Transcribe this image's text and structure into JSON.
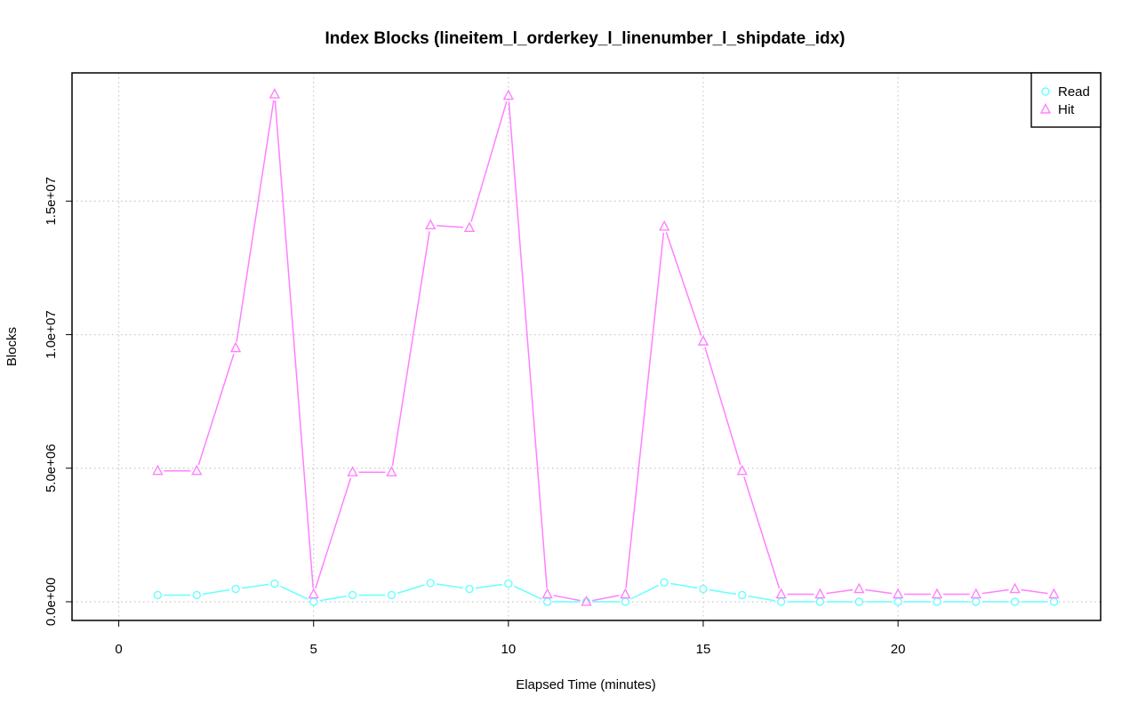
{
  "chart_data": {
    "type": "line",
    "title": "Index Blocks (lineitem_l_orderkey_l_linenumber_l_shipdate_idx)",
    "xlabel": "Elapsed Time (minutes)",
    "ylabel": "Blocks",
    "xlim": [
      -1.2,
      25.2
    ],
    "ylim": [
      -700000,
      19800000
    ],
    "x_ticks": [
      0,
      5,
      10,
      15,
      20
    ],
    "x_tick_labels": [
      "0",
      "5",
      "10",
      "15",
      "20"
    ],
    "y_ticks": [
      0,
      5000000,
      10000000,
      15000000
    ],
    "y_tick_labels": [
      "0.0e+00",
      "5.0e+06",
      "1.0e+07",
      "1.5e+07"
    ],
    "grid": true,
    "legend_position": "top-right",
    "x": [
      1,
      2,
      3,
      4,
      5,
      6,
      7,
      8,
      9,
      10,
      11,
      12,
      13,
      14,
      15,
      16,
      17,
      18,
      19,
      20,
      21,
      22,
      23,
      24
    ],
    "series": [
      {
        "name": "Read",
        "color": "#66ffff",
        "marker": "circle",
        "values": [
          250000,
          250000,
          480000,
          680000,
          0,
          250000,
          250000,
          700000,
          480000,
          680000,
          0,
          0,
          0,
          720000,
          480000,
          250000,
          0,
          0,
          0,
          0,
          0,
          0,
          0,
          0
        ]
      },
      {
        "name": "Hit",
        "color": "#ff80ff",
        "marker": "triangle",
        "values": [
          4900000,
          4900000,
          9500000,
          19000000,
          280000,
          4850000,
          4850000,
          14100000,
          14000000,
          18950000,
          280000,
          0,
          280000,
          14050000,
          9750000,
          4900000,
          280000,
          280000,
          480000,
          280000,
          280000,
          280000,
          480000,
          280000
        ]
      }
    ]
  }
}
